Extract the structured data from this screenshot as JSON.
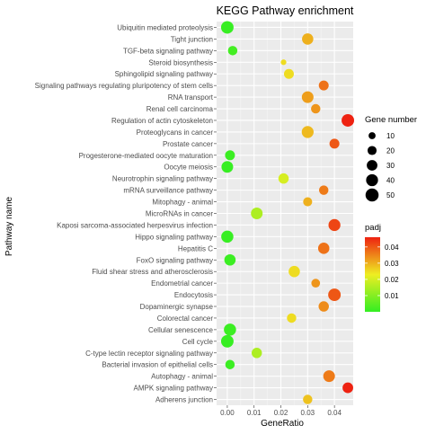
{
  "chart_data": {
    "type": "scatter",
    "title": "KEGG Pathway enrichment",
    "xlabel": "GeneRatio",
    "ylabel": "Pathway name",
    "xlim": [
      -0.004,
      0.047
    ],
    "x_ticks": [
      0.0,
      0.01,
      0.02,
      0.03,
      0.04
    ],
    "x_tick_labels": [
      "0.00",
      "0.01",
      "0.02",
      "0.03",
      "0.04"
    ],
    "grid": true,
    "legend_position": "right",
    "size_legend": {
      "title": "Gene number",
      "values": [
        10,
        20,
        30,
        40,
        50
      ]
    },
    "color_legend": {
      "title": "padj",
      "low_color": "#33ee22",
      "mid_color": "#eeee22",
      "high_color": "#ee2211",
      "range": [
        0.0,
        0.046
      ],
      "ticks": [
        0.01,
        0.02,
        0.03,
        0.04
      ],
      "tick_labels": [
        "0.01",
        "0.02",
        "0.03",
        "0.04"
      ]
    },
    "points": [
      {
        "pathway": "Ubiquitin mediated proteolysis",
        "gene_ratio": 0.0,
        "gene_number": 45,
        "padj": 0.0005
      },
      {
        "pathway": "Tight junction",
        "gene_ratio": 0.03,
        "gene_number": 35,
        "padj": 0.03
      },
      {
        "pathway": "TGF-beta signaling pathway",
        "gene_ratio": 0.002,
        "gene_number": 22,
        "padj": 0.002
      },
      {
        "pathway": "Steroid biosynthesis",
        "gene_ratio": 0.021,
        "gene_number": 5,
        "padj": 0.025
      },
      {
        "pathway": "Sphingolipid signaling pathway",
        "gene_ratio": 0.023,
        "gene_number": 25,
        "padj": 0.025
      },
      {
        "pathway": "Signaling pathways regulating pluripotency of stem cells",
        "gene_ratio": 0.036,
        "gene_number": 25,
        "padj": 0.037
      },
      {
        "pathway": "RNA transport",
        "gene_ratio": 0.03,
        "gene_number": 38,
        "padj": 0.032
      },
      {
        "pathway": "Renal cell carcinoma",
        "gene_ratio": 0.033,
        "gene_number": 22,
        "padj": 0.033
      },
      {
        "pathway": "Regulation of actin cytoskeleton",
        "gene_ratio": 0.045,
        "gene_number": 45,
        "padj": 0.046
      },
      {
        "pathway": "Proteoglycans in cancer",
        "gene_ratio": 0.03,
        "gene_number": 40,
        "padj": 0.029
      },
      {
        "pathway": "Prostate cancer",
        "gene_ratio": 0.04,
        "gene_number": 25,
        "padj": 0.04
      },
      {
        "pathway": "Progesterone-mediated oocyte maturation",
        "gene_ratio": 0.001,
        "gene_number": 25,
        "padj": 0.001
      },
      {
        "pathway": "Oocyte meiosis",
        "gene_ratio": 0.0,
        "gene_number": 38,
        "padj": 0.0005
      },
      {
        "pathway": "Neurotrophin signaling pathway",
        "gene_ratio": 0.021,
        "gene_number": 28,
        "padj": 0.02
      },
      {
        "pathway": "mRNA surveillance pathway",
        "gene_ratio": 0.036,
        "gene_number": 22,
        "padj": 0.036
      },
      {
        "pathway": "Mitophagy - animal",
        "gene_ratio": 0.03,
        "gene_number": 20,
        "padj": 0.03
      },
      {
        "pathway": "MicroRNAs in cancer",
        "gene_ratio": 0.011,
        "gene_number": 38,
        "padj": 0.015
      },
      {
        "pathway": "Kaposi sarcoma-associated herpesvirus infection",
        "gene_ratio": 0.04,
        "gene_number": 40,
        "padj": 0.042
      },
      {
        "pathway": "Hippo signaling pathway",
        "gene_ratio": 0.0,
        "gene_number": 42,
        "padj": 0.0005
      },
      {
        "pathway": "Hepatitis C",
        "gene_ratio": 0.036,
        "gene_number": 35,
        "padj": 0.037
      },
      {
        "pathway": "FoxO signaling pathway",
        "gene_ratio": 0.001,
        "gene_number": 35,
        "padj": 0.001
      },
      {
        "pathway": "Fluid shear stress and atherosclerosis",
        "gene_ratio": 0.025,
        "gene_number": 35,
        "padj": 0.025
      },
      {
        "pathway": "Endometrial cancer",
        "gene_ratio": 0.033,
        "gene_number": 18,
        "padj": 0.033
      },
      {
        "pathway": "Endocytosis",
        "gene_ratio": 0.04,
        "gene_number": 45,
        "padj": 0.04
      },
      {
        "pathway": "Dopaminergic synapse",
        "gene_ratio": 0.036,
        "gene_number": 28,
        "padj": 0.034
      },
      {
        "pathway": "Colorectal cancer",
        "gene_ratio": 0.024,
        "gene_number": 22,
        "padj": 0.025
      },
      {
        "pathway": "Cellular senescence",
        "gene_ratio": 0.001,
        "gene_number": 42,
        "padj": 0.001
      },
      {
        "pathway": "Cell cycle",
        "gene_ratio": 0.0,
        "gene_number": 45,
        "padj": 0.0005
      },
      {
        "pathway": "C-type lectin receptor signaling pathway",
        "gene_ratio": 0.011,
        "gene_number": 28,
        "padj": 0.015
      },
      {
        "pathway": "Bacterial invasion of epithelial cells",
        "gene_ratio": 0.001,
        "gene_number": 22,
        "padj": 0.001
      },
      {
        "pathway": "Autophagy - animal",
        "gene_ratio": 0.038,
        "gene_number": 38,
        "padj": 0.036
      },
      {
        "pathway": "AMPK signaling pathway",
        "gene_ratio": 0.045,
        "gene_number": 30,
        "padj": 0.046
      },
      {
        "pathway": "Adherens junction",
        "gene_ratio": 0.03,
        "gene_number": 22,
        "padj": 0.028
      }
    ]
  }
}
